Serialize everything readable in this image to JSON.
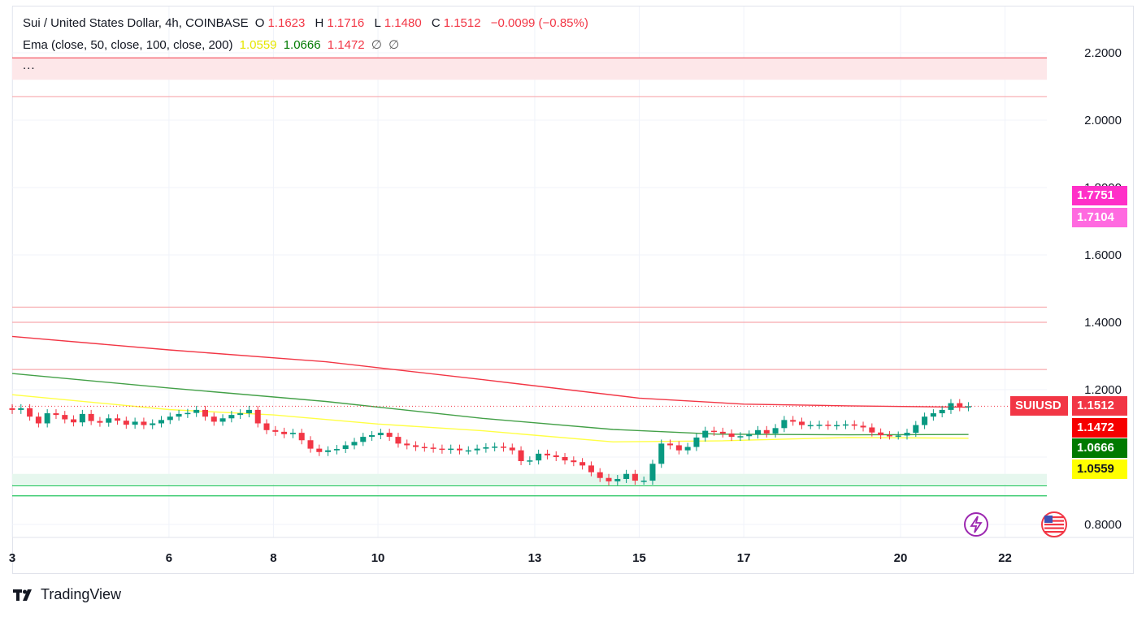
{
  "header": {
    "symbol_line": "Sui / United States Dollar, 4h, COINBASE",
    "open_label": "O",
    "open_value": "1.1623",
    "high_label": "H",
    "high_value": "1.1716",
    "low_label": "L",
    "low_value": "1.1480",
    "close_label": "C",
    "close_value": "1.1512",
    "change": "−0.0099 (−0.85%)",
    "ema_label": "Ema (close, 50, close, 100, close, 200)",
    "ema_values": [
      "1.0559",
      "1.0666",
      "1.1472"
    ],
    "ema_extra": [
      "∅",
      "∅"
    ],
    "more": "..."
  },
  "price_badges": [
    {
      "text": "1.7751",
      "bg": "#ff2fc8",
      "value": 1.7751
    },
    {
      "text": "1.7104",
      "bg": "#ff6ae0",
      "value": 1.7104
    },
    {
      "text": "1.1512",
      "bg": "#f23645",
      "value": 1.1512,
      "prefix": "SUIUSD"
    },
    {
      "text": "1.1472",
      "bg": "#f60000",
      "value": 1.1472
    },
    {
      "text": "1.0666",
      "bg": "#007a00",
      "value": 1.0666
    },
    {
      "text": "1.0559",
      "bg": "#ffff00",
      "value": 1.0559,
      "dark": true
    }
  ],
  "brand": "TradingView",
  "chart_data": {
    "type": "line",
    "title": "Sui / United States Dollar, 4h, COINBASE",
    "y_ticks": [
      "0.8000",
      "1.2000",
      "1.4000",
      "1.6000",
      "1.8000",
      "2.0000",
      "2.2000"
    ],
    "ylim": [
      0.8,
      2.2
    ],
    "x_ticks": [
      "3",
      "6",
      "8",
      "10",
      "13",
      "15",
      "17",
      "20",
      "22"
    ],
    "x_range_days": [
      3,
      22.8
    ],
    "colors": {
      "up": "#089981",
      "down": "#f23645",
      "ema50": "#ffff44",
      "ema100": "#43a047",
      "ema200": "#f23645"
    },
    "zones": [
      {
        "type": "resistance",
        "from": 2.12,
        "to": 2.185
      },
      {
        "type": "support",
        "from": 0.92,
        "to": 0.95
      }
    ],
    "levels": [
      2.07,
      1.445,
      1.4,
      1.26,
      0.915,
      0.885
    ],
    "ema200": [
      [
        3.0,
        1.358
      ],
      [
        6.0,
        1.318
      ],
      [
        9.0,
        1.283
      ],
      [
        12.0,
        1.23
      ],
      [
        15.0,
        1.175
      ],
      [
        17.0,
        1.157
      ],
      [
        19.0,
        1.152
      ],
      [
        21.3,
        1.148
      ]
    ],
    "ema100": [
      [
        3.0,
        1.248
      ],
      [
        6.0,
        1.205
      ],
      [
        9.0,
        1.165
      ],
      [
        12.0,
        1.115
      ],
      [
        14.5,
        1.082
      ],
      [
        16.5,
        1.068
      ],
      [
        19.0,
        1.066
      ],
      [
        21.3,
        1.067
      ]
    ],
    "ema50": [
      [
        3.0,
        1.185
      ],
      [
        6.0,
        1.141
      ],
      [
        8.0,
        1.125
      ],
      [
        10.0,
        1.098
      ],
      [
        12.0,
        1.078
      ],
      [
        14.5,
        1.045
      ],
      [
        16.5,
        1.048
      ],
      [
        19.0,
        1.058
      ],
      [
        21.3,
        1.056
      ]
    ],
    "closes": [
      1.14,
      1.145,
      1.12,
      1.1,
      1.13,
      1.125,
      1.112,
      1.103,
      1.128,
      1.107,
      1.102,
      1.115,
      1.108,
      1.096,
      1.105,
      1.095,
      1.1,
      1.11,
      1.12,
      1.128,
      1.131,
      1.14,
      1.12,
      1.105,
      1.115,
      1.125,
      1.13,
      1.14,
      1.1,
      1.08,
      1.075,
      1.068,
      1.072,
      1.05,
      1.025,
      1.015,
      1.02,
      1.024,
      1.035,
      1.045,
      1.06,
      1.065,
      1.072,
      1.06,
      1.04,
      1.035,
      1.03,
      1.028,
      1.025,
      1.022,
      1.025,
      1.02,
      1.02,
      1.025,
      1.029,
      1.031,
      1.028,
      1.02,
      0.988,
      0.99,
      1.01,
      1.005,
      1.0,
      0.99,
      0.985,
      0.975,
      0.955,
      0.938,
      0.928,
      0.935,
      0.95,
      0.93,
      0.93,
      0.98,
      1.04,
      1.035,
      1.02,
      1.03,
      1.058,
      1.078,
      1.075,
      1.07,
      1.06,
      1.062,
      1.067,
      1.08,
      1.07,
      1.086,
      1.11,
      1.105,
      1.095,
      1.095,
      1.096,
      1.093,
      1.095,
      1.097,
      1.093,
      1.088,
      1.073,
      1.065,
      1.064,
      1.064,
      1.072,
      1.095,
      1.12,
      1.13,
      1.14,
      1.16,
      1.148,
      1.151
    ]
  }
}
